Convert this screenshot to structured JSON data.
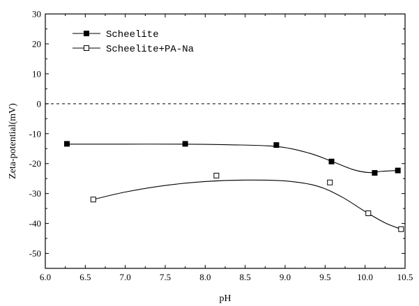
{
  "chart_data": {
    "type": "scatter",
    "xlabel": "pH",
    "ylabel": "Zeta-potential(mV)",
    "xlim": [
      6.0,
      10.5
    ],
    "ylim": [
      -55,
      30
    ],
    "xticks": [
      "6.0",
      "6.5",
      "7.0",
      "7.5",
      "8.0",
      "8.5",
      "9.0",
      "9.5",
      "10.0",
      "10.5"
    ],
    "yticks": [
      "30",
      "20",
      "10",
      "0",
      "-10",
      "-20",
      "-30",
      "-40",
      "-50"
    ],
    "reference_line": {
      "y": 0,
      "style": "dashed"
    },
    "legend_position": "top-left",
    "grid": false,
    "series": [
      {
        "name": "Scheelite",
        "marker": "filled-square",
        "x": [
          6.27,
          7.75,
          8.89,
          9.58,
          10.12,
          10.41
        ],
        "y": [
          -13.4,
          -13.4,
          -13.8,
          -19.3,
          -23.1,
          -22.3
        ],
        "curve_x": [
          6.27,
          7.0,
          7.75,
          8.3,
          8.9,
          9.3,
          9.58,
          9.85,
          10.05,
          10.2,
          10.41
        ],
        "curve_y": [
          -13.5,
          -13.5,
          -13.5,
          -13.7,
          -14.3,
          -16.5,
          -19.2,
          -22.0,
          -23.0,
          -22.6,
          -22.3
        ]
      },
      {
        "name": "Scheelite+PA-Na",
        "marker": "open-square",
        "x": [
          6.6,
          8.14,
          9.56,
          10.04,
          10.45
        ],
        "y": [
          -32.0,
          -24.0,
          -26.3,
          -36.6,
          -41.9
        ],
        "curve_x": [
          6.6,
          7.0,
          7.5,
          8.0,
          8.5,
          9.0,
          9.4,
          9.7,
          10.0,
          10.25,
          10.45
        ],
        "curve_y": [
          -32.0,
          -29.5,
          -27.3,
          -26.0,
          -25.5,
          -25.8,
          -27.5,
          -31.0,
          -36.0,
          -39.8,
          -41.9
        ]
      }
    ]
  }
}
